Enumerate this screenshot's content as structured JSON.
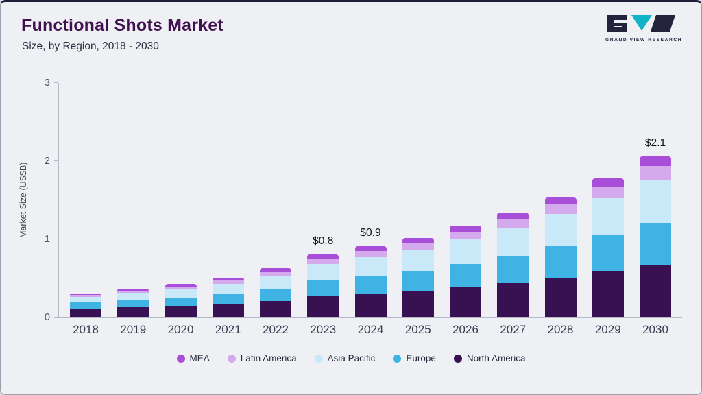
{
  "header": {
    "title": "Functional Shots Market",
    "subtitle": "Size, by Region, 2018 - 2030",
    "logo_text": "GRAND VIEW RESEARCH"
  },
  "colors": {
    "mea": "#a94ed8",
    "latin_america": "#d4a9ee",
    "asia_pacific": "#c9e9f8",
    "europe": "#3fb3e4",
    "north_america": "#371152",
    "logo_navy": "#23233e",
    "logo_teal": "#12b3c7"
  },
  "chart_data": {
    "type": "bar",
    "stacked": true,
    "title": "Functional Shots Market Size, by Region, 2018 - 2030",
    "ylabel": "Market Size (US$B)",
    "xlabel": "",
    "ylim": [
      0,
      3
    ],
    "yticks": [
      0,
      1,
      2,
      3
    ],
    "grid": false,
    "legend_position": "bottom",
    "categories": [
      "2018",
      "2019",
      "2020",
      "2021",
      "2022",
      "2023",
      "2024",
      "2025",
      "2026",
      "2027",
      "2028",
      "2029",
      "2030"
    ],
    "series": [
      {
        "name": "North America",
        "color": "#371152",
        "values": [
          0.105,
          0.125,
          0.14,
          0.165,
          0.2,
          0.26,
          0.29,
          0.335,
          0.385,
          0.435,
          0.5,
          0.585,
          0.67
        ]
      },
      {
        "name": "Europe",
        "color": "#3fb3e4",
        "values": [
          0.075,
          0.085,
          0.105,
          0.125,
          0.16,
          0.205,
          0.23,
          0.255,
          0.295,
          0.345,
          0.4,
          0.455,
          0.53
        ]
      },
      {
        "name": "Asia Pacific",
        "color": "#c9e9f8",
        "values": [
          0.075,
          0.095,
          0.11,
          0.135,
          0.17,
          0.215,
          0.245,
          0.27,
          0.315,
          0.36,
          0.415,
          0.48,
          0.555
        ]
      },
      {
        "name": "Latin America",
        "color": "#d4a9ee",
        "values": [
          0.025,
          0.03,
          0.035,
          0.045,
          0.05,
          0.065,
          0.075,
          0.085,
          0.095,
          0.105,
          0.12,
          0.14,
          0.175
        ]
      },
      {
        "name": "MEA",
        "color": "#a94ed8",
        "values": [
          0.02,
          0.025,
          0.03,
          0.03,
          0.04,
          0.055,
          0.06,
          0.065,
          0.075,
          0.085,
          0.095,
          0.11,
          0.125
        ]
      }
    ],
    "legend_order": [
      "MEA",
      "Latin America",
      "Asia Pacific",
      "Europe",
      "North America"
    ],
    "annotations": [
      {
        "category": "2023",
        "text": "$0.8"
      },
      {
        "category": "2024",
        "text": "$0.9"
      },
      {
        "category": "2030",
        "text": "$2.1"
      }
    ]
  }
}
